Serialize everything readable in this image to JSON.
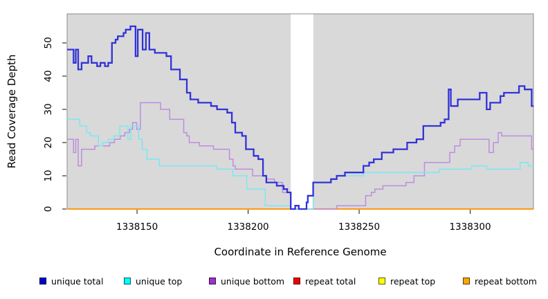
{
  "chart_data": {
    "type": "line",
    "subtype": "step-coverage-plot",
    "title": "",
    "xlabel": "Coordinate in Reference Genome",
    "ylabel": "Read Coverage Depth",
    "xlim": [
      1338118.5,
      1338328.5
    ],
    "ylim": [
      0,
      58.75
    ],
    "x_ticks": [
      1338150,
      1338200,
      1338250,
      1338300
    ],
    "y_ticks": [
      0,
      10,
      20,
      30,
      40,
      50
    ],
    "grid": false,
    "panel_background": "#d9d9d9",
    "panel_border_color": "#8c8c8c",
    "tick_color": "#333333",
    "gap_region": {
      "start": 1338219.2,
      "end": 1338229.4,
      "color": "#ffffff"
    },
    "legend_position": "bottom",
    "legend": [
      {
        "label": "unique total",
        "color": "#0000cc"
      },
      {
        "label": "unique top",
        "color": "#00ffff"
      },
      {
        "label": "unique bottom",
        "color": "#9932cc"
      },
      {
        "label": "repeat total",
        "color": "#ee0000"
      },
      {
        "label": "repeat top",
        "color": "#ffff00"
      },
      {
        "label": "repeat bottom",
        "color": "#ffa500"
      }
    ],
    "series": [
      {
        "name": "repeat total",
        "line_color": "#cc2020",
        "line_width": 1.3,
        "points": [
          [
            1338118.5,
            0
          ]
        ]
      },
      {
        "name": "repeat top",
        "line_color": "#ffee55",
        "line_width": 1.3,
        "points": [
          [
            1338118.5,
            0
          ]
        ]
      },
      {
        "name": "repeat bottom",
        "line_color": "#ff9400",
        "line_width": 1.8,
        "points": [
          [
            1338118.5,
            0
          ]
        ]
      },
      {
        "name": "unique bottom",
        "line_color": "#bd8cdf",
        "line_width": 1.5,
        "points": [
          [
            1338118.5,
            21
          ],
          [
            1338121.4,
            17
          ],
          [
            1338122.4,
            21
          ],
          [
            1338123.5,
            13
          ],
          [
            1338125,
            18
          ],
          [
            1338131,
            19
          ],
          [
            1338137.7,
            20
          ],
          [
            1338139.8,
            21
          ],
          [
            1338142.4,
            22
          ],
          [
            1338144.5,
            23
          ],
          [
            1338146.6,
            24
          ],
          [
            1338148,
            26
          ],
          [
            1338149.8,
            24
          ],
          [
            1338151.5,
            32
          ],
          [
            1338160.6,
            30
          ],
          [
            1338164.7,
            27
          ],
          [
            1338171,
            23
          ],
          [
            1338172.4,
            22
          ],
          [
            1338173.5,
            20
          ],
          [
            1338178.1,
            19
          ],
          [
            1338184.4,
            18
          ],
          [
            1338191.6,
            15
          ],
          [
            1338193.2,
            13
          ],
          [
            1338194.2,
            12
          ],
          [
            1338202,
            10
          ],
          [
            1338208.3,
            9
          ],
          [
            1338211.9,
            8
          ],
          [
            1338215.5,
            5
          ],
          [
            1338219.2,
            0
          ],
          [
            1338239.9,
            1
          ],
          [
            1338252.9,
            4
          ],
          [
            1338255.5,
            5
          ],
          [
            1338257.1,
            6
          ],
          [
            1338260.7,
            7
          ],
          [
            1338271.1,
            8
          ],
          [
            1338274.7,
            10
          ],
          [
            1338279.4,
            14
          ],
          [
            1338290.8,
            17
          ],
          [
            1338293,
            19
          ],
          [
            1338295.5,
            21
          ],
          [
            1338308.5,
            17
          ],
          [
            1338310.5,
            20
          ],
          [
            1338312.6,
            23
          ],
          [
            1338314.2,
            22
          ],
          [
            1338327.7,
            18
          ]
        ]
      },
      {
        "name": "unique top",
        "line_color": "#7ce8f0",
        "line_width": 1.5,
        "points": [
          [
            1338118.5,
            27
          ],
          [
            1338124.2,
            25
          ],
          [
            1338127.3,
            23
          ],
          [
            1338129,
            22
          ],
          [
            1338132.6,
            19
          ],
          [
            1338134.5,
            20
          ],
          [
            1338137,
            21
          ],
          [
            1338139.5,
            22
          ],
          [
            1338142.2,
            25
          ],
          [
            1338145.9,
            21
          ],
          [
            1338147.2,
            25
          ],
          [
            1338150.7,
            21
          ],
          [
            1338152.3,
            18
          ],
          [
            1338154.4,
            15
          ],
          [
            1338160,
            13
          ],
          [
            1338185.9,
            12
          ],
          [
            1338193.2,
            10
          ],
          [
            1338199.4,
            6
          ],
          [
            1338207.7,
            1
          ],
          [
            1338219.2,
            0
          ],
          [
            1338229.3,
            8
          ],
          [
            1338237.3,
            9
          ],
          [
            1338239.9,
            10
          ],
          [
            1338251.9,
            11
          ],
          [
            1338286,
            12
          ],
          [
            1338300.7,
            13
          ],
          [
            1338307.4,
            12
          ],
          [
            1338322.5,
            14
          ],
          [
            1338326.1,
            13
          ]
        ]
      },
      {
        "name": "unique total",
        "line_color": "#3232d8",
        "line_width": 2.3,
        "points": [
          [
            1338118.5,
            48
          ],
          [
            1338121.4,
            44
          ],
          [
            1338122.4,
            48
          ],
          [
            1338123.5,
            42
          ],
          [
            1338125,
            44
          ],
          [
            1338128,
            46
          ],
          [
            1338129.5,
            44
          ],
          [
            1338132,
            43
          ],
          [
            1338133.5,
            44
          ],
          [
            1338135.5,
            43
          ],
          [
            1338137,
            44
          ],
          [
            1338138.7,
            50
          ],
          [
            1338140.3,
            51
          ],
          [
            1338141.3,
            52
          ],
          [
            1338143.9,
            53
          ],
          [
            1338144.9,
            54
          ],
          [
            1338147,
            55
          ],
          [
            1338149.3,
            46
          ],
          [
            1338150.3,
            54
          ],
          [
            1338152.5,
            48
          ],
          [
            1338154,
            53
          ],
          [
            1338155.5,
            48
          ],
          [
            1338158,
            47
          ],
          [
            1338163.2,
            46
          ],
          [
            1338165.3,
            42
          ],
          [
            1338169.3,
            39
          ],
          [
            1338172.4,
            35
          ],
          [
            1338174,
            33
          ],
          [
            1338177.5,
            32
          ],
          [
            1338183.3,
            31
          ],
          [
            1338186,
            30
          ],
          [
            1338190.6,
            29
          ],
          [
            1338192.7,
            26
          ],
          [
            1338194.2,
            23
          ],
          [
            1338197.3,
            22
          ],
          [
            1338199,
            18
          ],
          [
            1338202.5,
            16
          ],
          [
            1338204.6,
            15
          ],
          [
            1338206.7,
            10
          ],
          [
            1338208.2,
            8
          ],
          [
            1338212.9,
            7
          ],
          [
            1338216,
            6
          ],
          [
            1338217.6,
            5
          ],
          [
            1338219.2,
            0
          ],
          [
            1338221.2,
            1
          ],
          [
            1338222.8,
            0
          ],
          [
            1338226.3,
            2
          ],
          [
            1338226.9,
            4
          ],
          [
            1338229.3,
            8
          ],
          [
            1338237.3,
            9
          ],
          [
            1338239.9,
            10
          ],
          [
            1338243.6,
            11
          ],
          [
            1338251.9,
            13
          ],
          [
            1338254.5,
            14
          ],
          [
            1338256.6,
            15
          ],
          [
            1338260.2,
            17
          ],
          [
            1338265.4,
            18
          ],
          [
            1338271.6,
            20
          ],
          [
            1338275.8,
            21
          ],
          [
            1338278.9,
            25
          ],
          [
            1338286.7,
            26
          ],
          [
            1338288.5,
            27
          ],
          [
            1338290.3,
            36
          ],
          [
            1338291.3,
            31
          ],
          [
            1338294.4,
            33
          ],
          [
            1338304.3,
            35
          ],
          [
            1338307.4,
            30
          ],
          [
            1338309,
            32
          ],
          [
            1338313.6,
            34
          ],
          [
            1338315.2,
            35
          ],
          [
            1338322,
            37
          ],
          [
            1338324.5,
            36
          ],
          [
            1338327.7,
            31
          ]
        ]
      }
    ]
  }
}
